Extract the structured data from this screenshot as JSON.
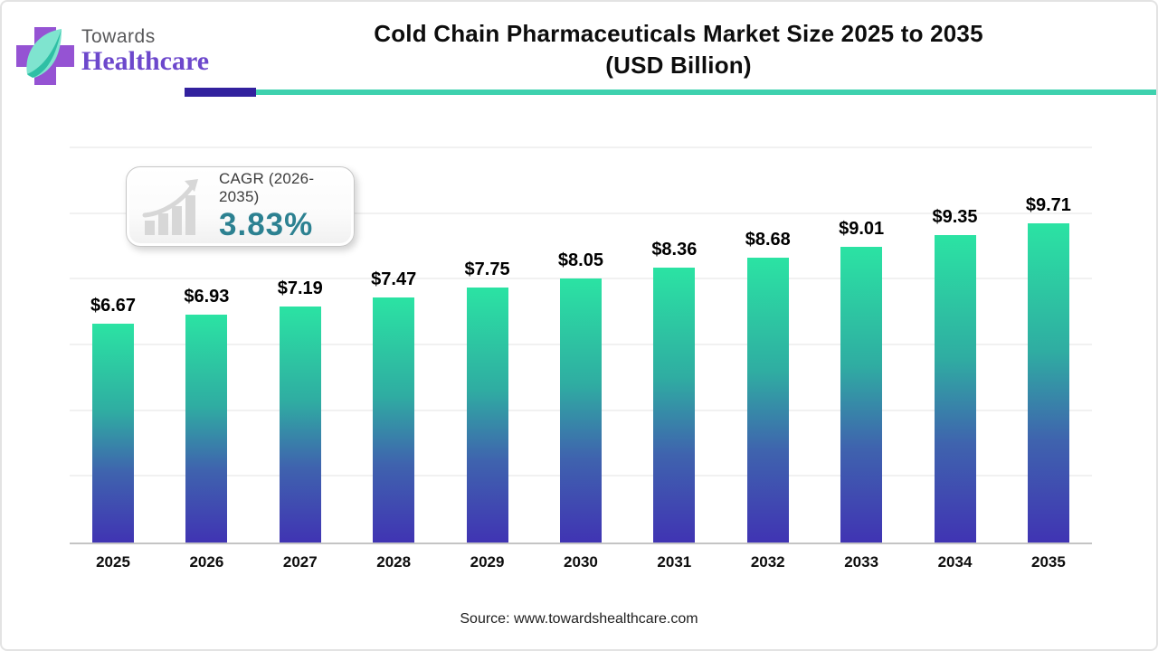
{
  "header": {
    "logo_line1": "Towards",
    "logo_line2": "Healthcare",
    "title_line1": "Cold Chain Pharmaceuticals Market Size 2025 to 2035",
    "title_line2": "(USD Billion)"
  },
  "badge": {
    "label": "CAGR (2026-2035)",
    "value": "3.83%",
    "value_color": "#2c8191"
  },
  "chart_data": {
    "type": "bar",
    "title": "Cold Chain Pharmaceuticals Market Size 2025 to 2035 (USD Billion)",
    "xlabel": "",
    "ylabel": "",
    "categories": [
      "2025",
      "2026",
      "2027",
      "2028",
      "2029",
      "2030",
      "2031",
      "2032",
      "2033",
      "2034",
      "2035"
    ],
    "values": [
      6.67,
      6.93,
      7.19,
      7.47,
      7.75,
      8.05,
      8.36,
      8.68,
      9.01,
      9.35,
      9.71
    ],
    "value_labels": [
      "$6.67",
      "$6.93",
      "$7.19",
      "$7.47",
      "$7.75",
      "$8.05",
      "$8.36",
      "$8.68",
      "$9.01",
      "$9.35",
      "$9.71"
    ],
    "ylim": [
      0,
      12
    ],
    "gridline_step": 2,
    "grid": true,
    "legend_position": "none",
    "bar_gradient_top": "#2be3a3",
    "bar_gradient_mid1": "#2fada2",
    "bar_gradient_mid2": "#3f63ae",
    "bar_gradient_bottom": "#4034b3"
  },
  "footer": {
    "source": "Source: www.towardshealthcare.com"
  },
  "colors": {
    "accent_teal": "#3ed1ae",
    "accent_indigo": "#32219e",
    "logo_purple": "#6d48cc",
    "logo_gray": "#58585a"
  }
}
